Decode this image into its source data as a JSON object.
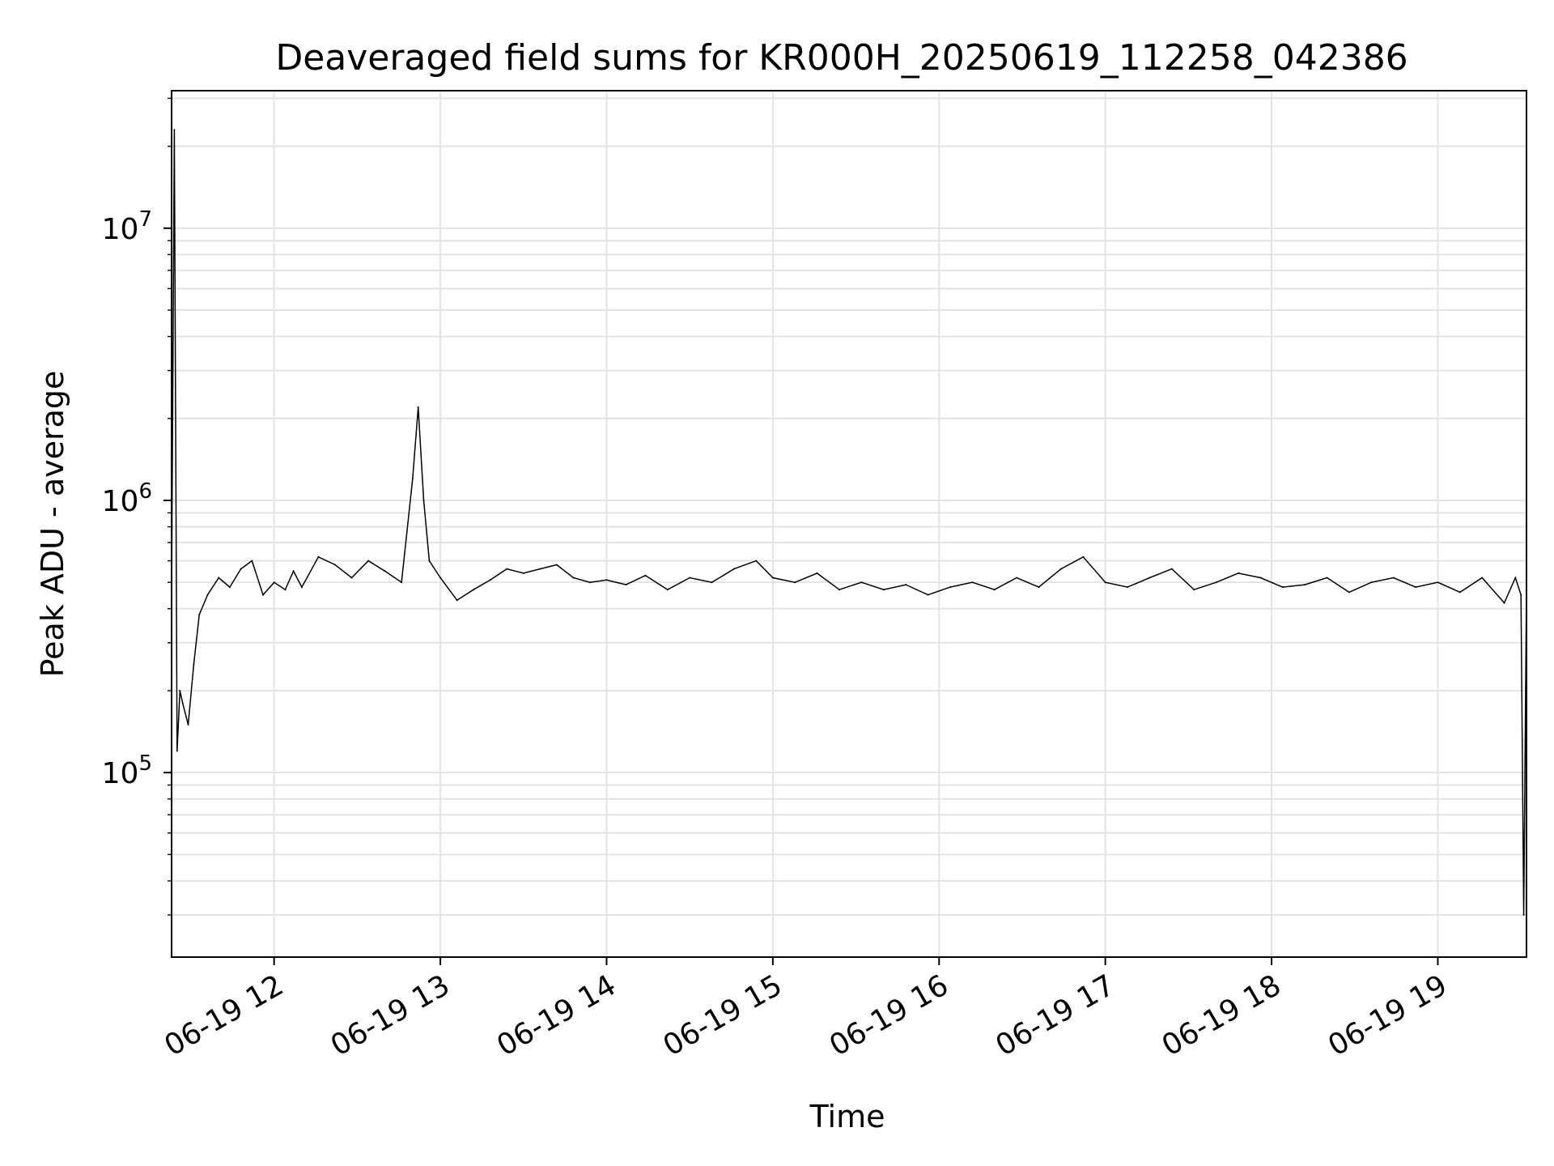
{
  "chart_data": {
    "type": "line",
    "title": "Deaveraged field sums for KR000H_20250619_112258_042386",
    "xlabel": "Time",
    "ylabel": "Peak ADU - average",
    "yscale": "log",
    "xlim": [
      "2025-06-19T11:23:00",
      "2025-06-19T19:32:00"
    ],
    "ylim": [
      21000,
      32000000
    ],
    "grid": true,
    "x_ticks": [
      {
        "value": "2025-06-19T12:00:00",
        "label": "06-19 12"
      },
      {
        "value": "2025-06-19T13:00:00",
        "label": "06-19 13"
      },
      {
        "value": "2025-06-19T14:00:00",
        "label": "06-19 14"
      },
      {
        "value": "2025-06-19T15:00:00",
        "label": "06-19 15"
      },
      {
        "value": "2025-06-19T16:00:00",
        "label": "06-19 16"
      },
      {
        "value": "2025-06-19T17:00:00",
        "label": "06-19 17"
      },
      {
        "value": "2025-06-19T18:00:00",
        "label": "06-19 18"
      },
      {
        "value": "2025-06-19T19:00:00",
        "label": "06-19 19"
      }
    ],
    "y_ticks": [
      {
        "value": 100000,
        "base": "10",
        "exp": "5"
      },
      {
        "value": 1000000,
        "base": "10",
        "exp": "6"
      },
      {
        "value": 10000000,
        "base": "10",
        "exp": "7"
      }
    ],
    "series": [
      {
        "color": "#000000",
        "x": [
          "2025-06-19T11:23:00",
          "2025-06-19T11:24:00",
          "2025-06-19T11:25:00",
          "2025-06-19T11:26:00",
          "2025-06-19T11:27:00",
          "2025-06-19T11:29:00",
          "2025-06-19T11:31:00",
          "2025-06-19T11:33:00",
          "2025-06-19T11:36:00",
          "2025-06-19T11:40:00",
          "2025-06-19T11:44:00",
          "2025-06-19T11:48:00",
          "2025-06-19T11:52:00",
          "2025-06-19T11:56:00",
          "2025-06-19T12:00:00",
          "2025-06-19T12:04:00",
          "2025-06-19T12:07:00",
          "2025-06-19T12:10:00",
          "2025-06-19T12:16:00",
          "2025-06-19T12:22:00",
          "2025-06-19T12:28:00",
          "2025-06-19T12:34:00",
          "2025-06-19T12:40:00",
          "2025-06-19T12:46:00",
          "2025-06-19T12:50:00",
          "2025-06-19T12:52:00",
          "2025-06-19T12:54:00",
          "2025-06-19T12:56:00",
          "2025-06-19T13:00:00",
          "2025-06-19T13:06:00",
          "2025-06-19T13:12:00",
          "2025-06-19T13:18:00",
          "2025-06-19T13:24:00",
          "2025-06-19T13:30:00",
          "2025-06-19T13:36:00",
          "2025-06-19T13:42:00",
          "2025-06-19T13:48:00",
          "2025-06-19T13:54:00",
          "2025-06-19T14:00:00",
          "2025-06-19T14:07:00",
          "2025-06-19T14:14:00",
          "2025-06-19T14:22:00",
          "2025-06-19T14:30:00",
          "2025-06-19T14:38:00",
          "2025-06-19T14:46:00",
          "2025-06-19T14:54:00",
          "2025-06-19T15:00:00",
          "2025-06-19T15:08:00",
          "2025-06-19T15:16:00",
          "2025-06-19T15:24:00",
          "2025-06-19T15:32:00",
          "2025-06-19T15:40:00",
          "2025-06-19T15:48:00",
          "2025-06-19T15:56:00",
          "2025-06-19T16:04:00",
          "2025-06-19T16:12:00",
          "2025-06-19T16:20:00",
          "2025-06-19T16:28:00",
          "2025-06-19T16:36:00",
          "2025-06-19T16:44:00",
          "2025-06-19T16:52:00",
          "2025-06-19T17:00:00",
          "2025-06-19T17:08:00",
          "2025-06-19T17:16:00",
          "2025-06-19T17:24:00",
          "2025-06-19T17:32:00",
          "2025-06-19T17:40:00",
          "2025-06-19T17:48:00",
          "2025-06-19T17:56:00",
          "2025-06-19T18:04:00",
          "2025-06-19T18:12:00",
          "2025-06-19T18:20:00",
          "2025-06-19T18:28:00",
          "2025-06-19T18:36:00",
          "2025-06-19T18:44:00",
          "2025-06-19T18:52:00",
          "2025-06-19T19:00:00",
          "2025-06-19T19:08:00",
          "2025-06-19T19:16:00",
          "2025-06-19T19:24:00",
          "2025-06-19T19:28:00",
          "2025-06-19T19:30:00",
          "2025-06-19T19:31:00",
          "2025-06-19T19:32:00"
        ],
        "y": [
          450000,
          23000000,
          120000,
          200000,
          180000,
          150000,
          250000,
          380000,
          450000,
          520000,
          480000,
          560000,
          600000,
          450000,
          500000,
          470000,
          550000,
          480000,
          620000,
          580000,
          520000,
          600000,
          550000,
          500000,
          1200000,
          2200000,
          1000000,
          600000,
          520000,
          430000,
          470000,
          510000,
          560000,
          540000,
          560000,
          580000,
          520000,
          500000,
          510000,
          490000,
          530000,
          470000,
          520000,
          500000,
          560000,
          600000,
          520000,
          500000,
          540000,
          470000,
          500000,
          470000,
          490000,
          450000,
          480000,
          500000,
          470000,
          520000,
          480000,
          560000,
          620000,
          500000,
          480000,
          520000,
          560000,
          470000,
          500000,
          540000,
          520000,
          480000,
          490000,
          520000,
          460000,
          500000,
          520000,
          480000,
          500000,
          460000,
          520000,
          420000,
          520000,
          450000,
          30000,
          480000
        ]
      }
    ]
  }
}
